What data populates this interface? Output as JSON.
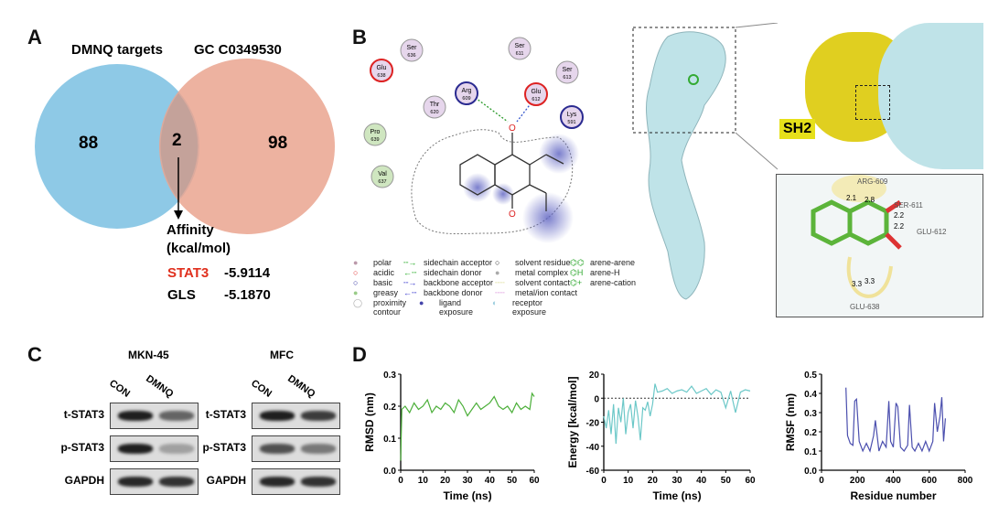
{
  "panels": {
    "a": "A",
    "b": "B",
    "c": "C",
    "d": "D"
  },
  "venn": {
    "left_title": "DMNQ targets",
    "right_title": "GC C0349530",
    "left_only": "88",
    "overlap": "2",
    "right_only": "98",
    "affinity_label_1": "Affinity",
    "affinity_label_2": "(kcal/mol)",
    "rows": [
      {
        "name": "STAT3",
        "value": "-5.9114"
      },
      {
        "name": "GLS",
        "value": "-5.1870"
      }
    ],
    "colors": {
      "left": "#8ec9e6",
      "right": "#eaa58f",
      "highlight": "#e0301e"
    }
  },
  "interaction": {
    "residues": [
      {
        "name": "Ser",
        "num": "636",
        "type": "polar"
      },
      {
        "name": "Ser",
        "num": "611",
        "type": "polar"
      },
      {
        "name": "Glu",
        "num": "638",
        "type": "acidic"
      },
      {
        "name": "Ser",
        "num": "613",
        "type": "polar"
      },
      {
        "name": "Arg",
        "num": "609",
        "type": "basic"
      },
      {
        "name": "Glu",
        "num": "612",
        "type": "acidic"
      },
      {
        "name": "Thr",
        "num": "620",
        "type": "polar"
      },
      {
        "name": "Lys",
        "num": "591",
        "type": "basic"
      },
      {
        "name": "Pro",
        "num": "639",
        "type": "greasy"
      },
      {
        "name": "Val",
        "num": "637",
        "type": "greasy"
      }
    ],
    "legend": {
      "col1": [
        "polar",
        "acidic",
        "basic",
        "greasy"
      ],
      "col2": [
        "sidechain acceptor",
        "sidechain donor",
        "backbone acceptor",
        "backbone donor"
      ],
      "col3": [
        "solvent residue",
        "metal complex",
        "solvent contact",
        "metal/ion contact"
      ],
      "col4": [
        "arene-arene",
        "arene-H",
        "arene-cation"
      ],
      "proximity": [
        "proximity",
        "contour"
      ],
      "ligand": [
        "ligand",
        "exposure"
      ],
      "receptor": [
        "receptor",
        "exposure"
      ]
    }
  },
  "structure": {
    "domain_label": "SH2",
    "residue_labels": [
      "ARG-609",
      "SER-611",
      "GLU-612",
      "GLU-638"
    ],
    "distances": [
      "2.1",
      "2.8",
      "2.2",
      "2.2",
      "3.3",
      "3.3"
    ]
  },
  "western": {
    "lines": [
      {
        "title": "MKN-45"
      },
      {
        "title": "MFC"
      }
    ],
    "lanes": [
      "CON",
      "DMNQ"
    ],
    "rows": [
      "t-STAT3",
      "p-STAT3",
      "GAPDH"
    ]
  },
  "chart_data": [
    {
      "type": "line",
      "ylabel": "RMSD (nm)",
      "xlabel": "Time (ns)",
      "xlim": [
        0,
        60
      ],
      "ylim": [
        0,
        0.3
      ],
      "xticks": [
        "0",
        "10",
        "20",
        "30",
        "40",
        "50",
        "60"
      ],
      "yticks": [
        "0.0",
        "0.1",
        "0.2",
        "0.3"
      ],
      "color": "#4caf3a",
      "x": [
        0,
        0.5,
        2,
        4,
        6,
        8,
        10,
        12,
        14,
        16,
        18,
        20,
        22,
        24,
        26,
        28,
        30,
        32,
        34,
        36,
        38,
        40,
        42,
        44,
        46,
        48,
        50,
        52,
        54,
        56,
        58,
        59,
        60
      ],
      "y": [
        0.03,
        0.19,
        0.2,
        0.18,
        0.21,
        0.19,
        0.2,
        0.22,
        0.18,
        0.2,
        0.19,
        0.21,
        0.2,
        0.18,
        0.22,
        0.2,
        0.17,
        0.19,
        0.21,
        0.19,
        0.2,
        0.21,
        0.23,
        0.2,
        0.19,
        0.2,
        0.18,
        0.21,
        0.19,
        0.2,
        0.19,
        0.24,
        0.23
      ]
    },
    {
      "type": "line",
      "ylabel": "Energy [kcal/mol]",
      "xlabel": "Time (ns)",
      "xlim": [
        0,
        60
      ],
      "ylim": [
        -60,
        20
      ],
      "xticks": [
        "0",
        "10",
        "20",
        "30",
        "40",
        "50",
        "60"
      ],
      "yticks": [
        "-60",
        "-40",
        "-20",
        "0",
        "20"
      ],
      "color": "#6cc8c8",
      "reference_line": 0,
      "x": [
        0,
        1,
        2,
        3,
        4,
        5,
        6,
        7,
        8,
        9,
        10,
        11,
        12,
        13,
        14,
        15,
        16,
        17,
        18,
        19,
        20,
        21,
        22,
        24,
        26,
        28,
        30,
        32,
        34,
        36,
        38,
        40,
        42,
        44,
        46,
        48,
        50,
        52,
        54,
        56,
        58,
        60
      ],
      "y": [
        -15,
        -25,
        -10,
        -30,
        -5,
        -38,
        -8,
        -20,
        0,
        -30,
        -12,
        -5,
        -25,
        -2,
        -15,
        -35,
        -8,
        -10,
        -3,
        -15,
        -5,
        12,
        5,
        6,
        8,
        4,
        6,
        7,
        5,
        10,
        4,
        6,
        8,
        3,
        7,
        5,
        -8,
        6,
        -12,
        5,
        7,
        6
      ]
    },
    {
      "type": "line",
      "ylabel": "RMSF (nm)",
      "xlabel": "Residue number",
      "xlim": [
        0,
        800
      ],
      "ylim": [
        0,
        0.5
      ],
      "xticks": [
        "0",
        "200",
        "400",
        "600",
        "800"
      ],
      "yticks": [
        "0.0",
        "0.1",
        "0.2",
        "0.3",
        "0.4",
        "0.5"
      ],
      "color": "#4b4fae",
      "x": [
        136,
        145,
        160,
        175,
        185,
        195,
        210,
        230,
        250,
        270,
        290,
        300,
        320,
        340,
        360,
        375,
        385,
        400,
        415,
        425,
        440,
        460,
        480,
        490,
        505,
        520,
        540,
        560,
        580,
        600,
        620,
        630,
        645,
        660,
        670,
        680,
        690
      ],
      "y": [
        0.43,
        0.18,
        0.14,
        0.13,
        0.36,
        0.37,
        0.15,
        0.1,
        0.14,
        0.1,
        0.18,
        0.26,
        0.1,
        0.15,
        0.12,
        0.36,
        0.15,
        0.12,
        0.35,
        0.33,
        0.12,
        0.1,
        0.13,
        0.34,
        0.12,
        0.1,
        0.14,
        0.1,
        0.15,
        0.1,
        0.15,
        0.35,
        0.2,
        0.28,
        0.38,
        0.15,
        0.27
      ]
    }
  ]
}
